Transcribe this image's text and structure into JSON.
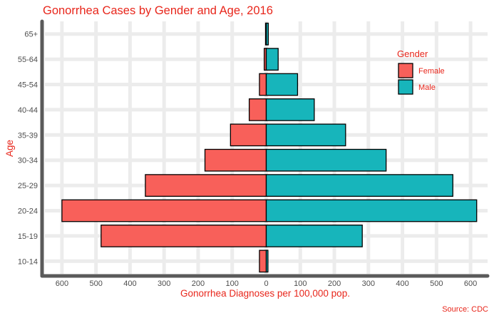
{
  "colors": {
    "title": "#e8261b",
    "female": "#f8605a",
    "male": "#17b5bb",
    "grid": "#ececec",
    "axis_line": "#5a5a5a",
    "bar_outline": "#000000"
  },
  "chart_data": {
    "type": "bar",
    "orientation": "horizontal",
    "layout": "population-pyramid",
    "title": "Gonorrhea Cases by Gender and Age, 2016",
    "xlabel": "Gonorrhea Diagnoses per 100,000 pop.",
    "ylabel": "Age",
    "caption": "Source: CDC",
    "categories": [
      "10-14",
      "15-19",
      "20-24",
      "25-29",
      "30-34",
      "35-39",
      "40-44",
      "45-54",
      "55-64",
      "65+"
    ],
    "series": [
      {
        "name": "Female",
        "values": [
          -20,
          -485,
          -600,
          -355,
          -180,
          -105,
          -50,
          -20,
          -6,
          -2
        ]
      },
      {
        "name": "Male",
        "values": [
          5,
          282,
          618,
          548,
          352,
          233,
          141,
          92,
          35,
          6
        ]
      }
    ],
    "xlim": [
      -650,
      650
    ],
    "xticks": [
      -600,
      -500,
      -400,
      -300,
      -200,
      -100,
      0,
      100,
      200,
      300,
      400,
      500,
      600
    ],
    "xtick_labels": [
      "600",
      "500",
      "400",
      "300",
      "200",
      "100",
      "0",
      "100",
      "200",
      "300",
      "400",
      "500",
      "600"
    ],
    "legend": {
      "title": "Gender",
      "entries": [
        "Female",
        "Male"
      ],
      "placement": "top-right inside plot"
    },
    "grid": true
  }
}
